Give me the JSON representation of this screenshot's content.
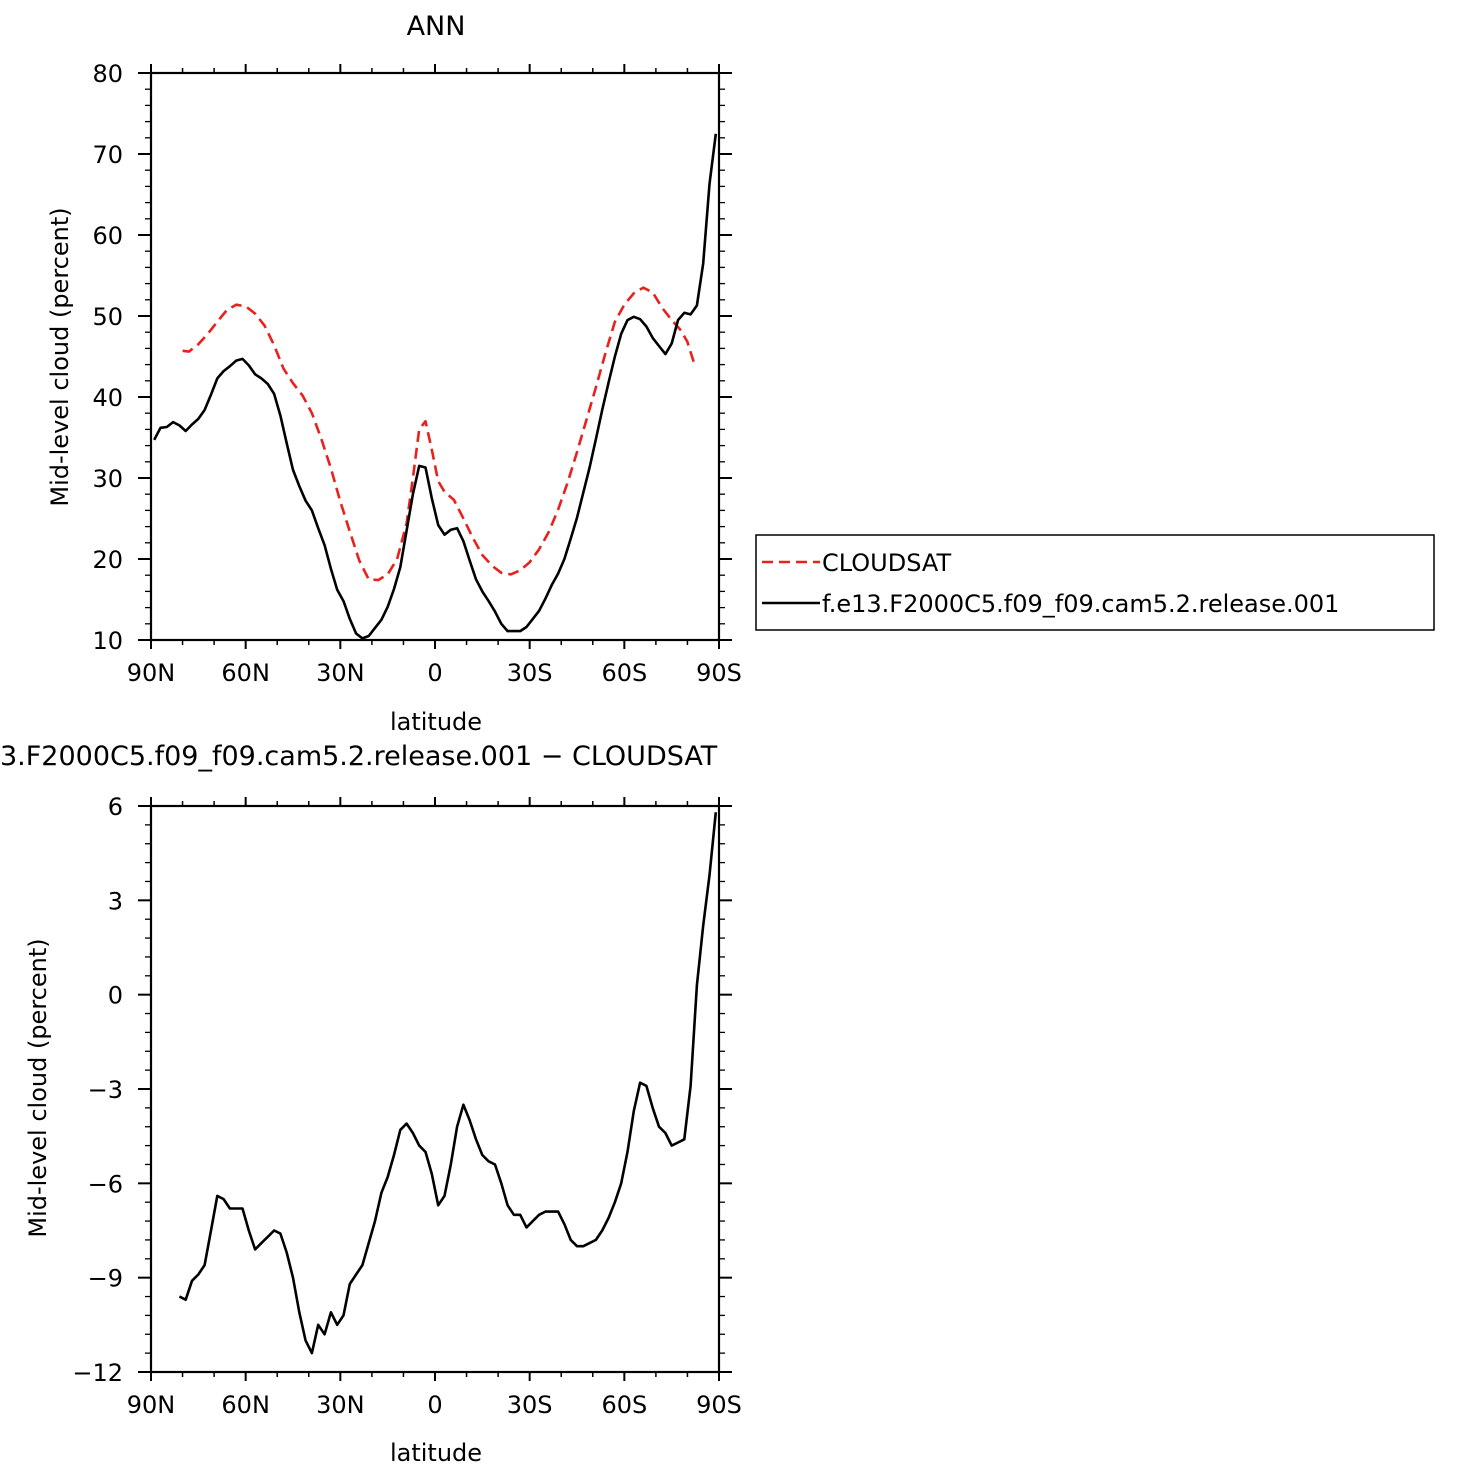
{
  "chart_data": [
    {
      "type": "line",
      "title": "ANN",
      "xlabel": "latitude",
      "ylabel": "Mid-level cloud (percent)",
      "xlim": [
        90,
        -90
      ],
      "ylim": [
        10,
        80
      ],
      "x_ticks": [
        {
          "value": 90,
          "label": "90N"
        },
        {
          "value": 60,
          "label": "60N"
        },
        {
          "value": 30,
          "label": "30N"
        },
        {
          "value": 0,
          "label": "0"
        },
        {
          "value": -30,
          "label": "30S"
        },
        {
          "value": -60,
          "label": "60S"
        },
        {
          "value": -90,
          "label": "90S"
        }
      ],
      "y_ticks": [
        10,
        20,
        30,
        40,
        50,
        60,
        70,
        80
      ],
      "y_tick_labels": [
        "10",
        "20",
        "30",
        "40",
        "50",
        "60",
        "70",
        "80"
      ],
      "legend": {
        "placement": "right",
        "entries": [
          {
            "label": "CLOUDSAT",
            "color": "#e8211c",
            "dash": true
          },
          {
            "label": "f.e13.F2000C5.f09_f09.cam5.2.release.001",
            "color": "#000000",
            "dash": false
          }
        ]
      },
      "series": [
        {
          "name": "CLOUDSAT",
          "color": "#e8211c",
          "dashed": true,
          "points": [
            [
              80,
              45.7
            ],
            [
              78,
              45.6
            ],
            [
              75,
              46.5
            ],
            [
              72,
              47.8
            ],
            [
              69,
              49.3
            ],
            [
              66,
              50.7
            ],
            [
              63,
              51.4
            ],
            [
              60,
              51.2
            ],
            [
              57,
              50.3
            ],
            [
              54,
              48.8
            ],
            [
              51,
              46.4
            ],
            [
              48,
              43.5
            ],
            [
              45,
              41.7
            ],
            [
              42,
              40.2
            ],
            [
              39,
              38.0
            ],
            [
              36,
              34.8
            ],
            [
              33,
              31.2
            ],
            [
              30,
              27.1
            ],
            [
              27,
              23.4
            ],
            [
              24,
              19.8
            ],
            [
              21,
              17.5
            ],
            [
              18,
              17.4
            ],
            [
              15,
              18.1
            ],
            [
              12,
              20.0
            ],
            [
              9,
              24.4
            ],
            [
              7,
              30.0
            ],
            [
              5,
              36.0
            ],
            [
              3,
              37.0
            ],
            [
              1,
              33.5
            ],
            [
              -1,
              29.6
            ],
            [
              -3,
              28.3
            ],
            [
              -6,
              27.3
            ],
            [
              -9,
              25.0
            ],
            [
              -12,
              22.6
            ],
            [
              -15,
              20.5
            ],
            [
              -18,
              19.2
            ],
            [
              -21,
              18.3
            ],
            [
              -24,
              18.1
            ],
            [
              -27,
              18.6
            ],
            [
              -30,
              19.6
            ],
            [
              -33,
              21.2
            ],
            [
              -36,
              23.3
            ],
            [
              -39,
              26.1
            ],
            [
              -42,
              29.4
            ],
            [
              -45,
              33.2
            ],
            [
              -48,
              37.2
            ],
            [
              -51,
              41.2
            ],
            [
              -54,
              45.4
            ],
            [
              -57,
              49.3
            ],
            [
              -60,
              51.4
            ],
            [
              -63,
              52.8
            ],
            [
              -66,
              53.5
            ],
            [
              -69,
              52.9
            ],
            [
              -72,
              51.0
            ],
            [
              -75,
              49.5
            ],
            [
              -78,
              48.2
            ],
            [
              -80,
              46.8
            ],
            [
              -82,
              44.3
            ]
          ]
        },
        {
          "name": "f.e13.F2000C5.f09_f09.cam5.2.release.001",
          "color": "#000000",
          "dashed": false,
          "points": [
            [
              89,
              34.7
            ],
            [
              87,
              36.2
            ],
            [
              85,
              36.3
            ],
            [
              83,
              36.9
            ],
            [
              81,
              36.5
            ],
            [
              79,
              35.8
            ],
            [
              77,
              36.6
            ],
            [
              75,
              37.3
            ],
            [
              73,
              38.4
            ],
            [
              71,
              40.3
            ],
            [
              69,
              42.3
            ],
            [
              67,
              43.2
            ],
            [
              65,
              43.8
            ],
            [
              63,
              44.5
            ],
            [
              61,
              44.7
            ],
            [
              59,
              43.9
            ],
            [
              57,
              42.8
            ],
            [
              55,
              42.3
            ],
            [
              53,
              41.6
            ],
            [
              51,
              40.4
            ],
            [
              49,
              37.7
            ],
            [
              47,
              34.3
            ],
            [
              45,
              31.0
            ],
            [
              43,
              29.0
            ],
            [
              41,
              27.2
            ],
            [
              39,
              26.0
            ],
            [
              37,
              23.8
            ],
            [
              35,
              21.7
            ],
            [
              33,
              18.8
            ],
            [
              31,
              16.2
            ],
            [
              29,
              14.8
            ],
            [
              27,
              12.6
            ],
            [
              25,
              10.8
            ],
            [
              23,
              10.2
            ],
            [
              21,
              10.5
            ],
            [
              19,
              11.5
            ],
            [
              17,
              12.5
            ],
            [
              15,
              14.1
            ],
            [
              13,
              16.3
            ],
            [
              11,
              19.0
            ],
            [
              9,
              23.5
            ],
            [
              7,
              28.0
            ],
            [
              5,
              31.5
            ],
            [
              3,
              31.3
            ],
            [
              1,
              27.5
            ],
            [
              -1,
              24.2
            ],
            [
              -3,
              23.0
            ],
            [
              -5,
              23.6
            ],
            [
              -7,
              23.8
            ],
            [
              -9,
              22.2
            ],
            [
              -11,
              19.8
            ],
            [
              -13,
              17.5
            ],
            [
              -15,
              16.0
            ],
            [
              -17,
              14.8
            ],
            [
              -19,
              13.5
            ],
            [
              -21,
              12.0
            ],
            [
              -23,
              11.1
            ],
            [
              -25,
              11.1
            ],
            [
              -27,
              11.1
            ],
            [
              -29,
              11.6
            ],
            [
              -31,
              12.6
            ],
            [
              -33,
              13.6
            ],
            [
              -35,
              15.1
            ],
            [
              -37,
              16.8
            ],
            [
              -39,
              18.2
            ],
            [
              -41,
              20.0
            ],
            [
              -43,
              22.5
            ],
            [
              -45,
              25.1
            ],
            [
              -47,
              28.2
            ],
            [
              -49,
              31.3
            ],
            [
              -51,
              34.8
            ],
            [
              -53,
              38.4
            ],
            [
              -55,
              41.8
            ],
            [
              -57,
              45.0
            ],
            [
              -59,
              47.8
            ],
            [
              -61,
              49.5
            ],
            [
              -63,
              49.9
            ],
            [
              -65,
              49.6
            ],
            [
              -67,
              48.7
            ],
            [
              -69,
              47.3
            ],
            [
              -71,
              46.3
            ],
            [
              -73,
              45.3
            ],
            [
              -75,
              46.6
            ],
            [
              -77,
              49.5
            ],
            [
              -79,
              50.4
            ],
            [
              -81,
              50.2
            ],
            [
              -83,
              51.3
            ],
            [
              -85,
              56.5
            ],
            [
              -87,
              66.3
            ],
            [
              -89,
              72.5
            ]
          ]
        }
      ]
    },
    {
      "type": "line",
      "title": "3.F2000C5.f09_f09.cam5.2.release.001 − CLOUDSAT",
      "xlabel": "latitude",
      "ylabel": "Mid-level cloud (percent)",
      "xlim": [
        90,
        -90
      ],
      "ylim": [
        -12,
        6
      ],
      "x_ticks": [
        {
          "value": 90,
          "label": "90N"
        },
        {
          "value": 60,
          "label": "60N"
        },
        {
          "value": 30,
          "label": "30N"
        },
        {
          "value": 0,
          "label": "0"
        },
        {
          "value": -30,
          "label": "30S"
        },
        {
          "value": -60,
          "label": "60S"
        },
        {
          "value": -90,
          "label": "90S"
        }
      ],
      "y_ticks": [
        -12,
        -9,
        -6,
        -3,
        0,
        3,
        6
      ],
      "y_tick_labels": [
        "−12",
        "−9",
        "−6",
        "−3",
        "0",
        "3",
        "6"
      ],
      "series": [
        {
          "color": "#000000",
          "dashed": false,
          "points": [
            [
              81,
              -9.6
            ],
            [
              79,
              -9.7
            ],
            [
              77,
              -9.1
            ],
            [
              75,
              -8.9
            ],
            [
              73,
              -8.6
            ],
            [
              71,
              -7.5
            ],
            [
              69,
              -6.4
            ],
            [
              67,
              -6.5
            ],
            [
              65,
              -6.8
            ],
            [
              63,
              -6.8
            ],
            [
              61,
              -6.8
            ],
            [
              59,
              -7.5
            ],
            [
              57,
              -8.1
            ],
            [
              55,
              -7.9
            ],
            [
              53,
              -7.7
            ],
            [
              51,
              -7.5
            ],
            [
              49,
              -7.6
            ],
            [
              47,
              -8.2
            ],
            [
              45,
              -9.0
            ],
            [
              43,
              -10.1
            ],
            [
              41,
              -11.0
            ],
            [
              39,
              -11.4
            ],
            [
              37,
              -10.5
            ],
            [
              35,
              -10.8
            ],
            [
              33,
              -10.1
            ],
            [
              31,
              -10.5
            ],
            [
              29,
              -10.2
            ],
            [
              27,
              -9.2
            ],
            [
              25,
              -8.9
            ],
            [
              23,
              -8.6
            ],
            [
              21,
              -7.9
            ],
            [
              19,
              -7.2
            ],
            [
              17,
              -6.3
            ],
            [
              15,
              -5.8
            ],
            [
              13,
              -5.1
            ],
            [
              11,
              -4.3
            ],
            [
              9,
              -4.1
            ],
            [
              7,
              -4.4
            ],
            [
              5,
              -4.8
            ],
            [
              3,
              -5.0
            ],
            [
              1,
              -5.7
            ],
            [
              -1,
              -6.7
            ],
            [
              -3,
              -6.4
            ],
            [
              -5,
              -5.4
            ],
            [
              -7,
              -4.2
            ],
            [
              -9,
              -3.5
            ],
            [
              -11,
              -4.0
            ],
            [
              -13,
              -4.6
            ],
            [
              -15,
              -5.1
            ],
            [
              -17,
              -5.3
            ],
            [
              -19,
              -5.4
            ],
            [
              -21,
              -6.0
            ],
            [
              -23,
              -6.7
            ],
            [
              -25,
              -7.0
            ],
            [
              -27,
              -7.0
            ],
            [
              -29,
              -7.4
            ],
            [
              -31,
              -7.2
            ],
            [
              -33,
              -7.0
            ],
            [
              -35,
              -6.9
            ],
            [
              -37,
              -6.9
            ],
            [
              -39,
              -6.9
            ],
            [
              -41,
              -7.3
            ],
            [
              -43,
              -7.8
            ],
            [
              -45,
              -8.0
            ],
            [
              -47,
              -8.0
            ],
            [
              -49,
              -7.9
            ],
            [
              -51,
              -7.8
            ],
            [
              -53,
              -7.5
            ],
            [
              -55,
              -7.1
            ],
            [
              -57,
              -6.6
            ],
            [
              -59,
              -6.0
            ],
            [
              -61,
              -5.0
            ],
            [
              -63,
              -3.7
            ],
            [
              -65,
              -2.8
            ],
            [
              -67,
              -2.9
            ],
            [
              -69,
              -3.6
            ],
            [
              -71,
              -4.2
            ],
            [
              -73,
              -4.4
            ],
            [
              -75,
              -4.8
            ],
            [
              -77,
              -4.7
            ],
            [
              -79,
              -4.6
            ],
            [
              -81,
              -2.9
            ],
            [
              -83,
              0.3
            ],
            [
              -85,
              2.2
            ],
            [
              -87,
              3.8
            ],
            [
              -89,
              5.8
            ]
          ]
        }
      ]
    }
  ]
}
